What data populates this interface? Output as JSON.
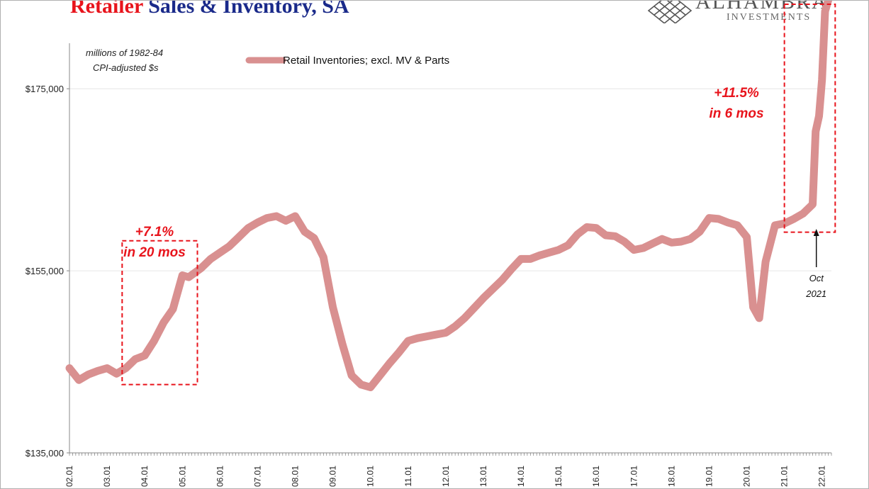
{
  "header": {
    "title_part1": "Retailer",
    "title_part2": " Sales & Inventory, SA"
  },
  "logo": {
    "name": "ALHAMBRA",
    "sub": "INVESTMENTS",
    "icon": "diamond-lattice-icon"
  },
  "colors": {
    "series": "#d99090",
    "annotation": "#e8141c",
    "title_red": "#e8141c",
    "title_blue": "#1a2a8a"
  },
  "chart_data": {
    "type": "line",
    "unit_line1": "millions of 1982-84",
    "unit_line2": "CPI-adjusted $s",
    "ylim": [
      135000,
      180000
    ],
    "yticks": [
      135000,
      155000,
      175000
    ],
    "ytick_labels": [
      "$135,000",
      "$155,000",
      "$175,000"
    ],
    "xlim": [
      2002.0,
      2022.25
    ],
    "xticks": [
      2002,
      2003,
      2004,
      2005,
      2006,
      2007,
      2008,
      2009,
      2010,
      2011,
      2012,
      2013,
      2014,
      2015,
      2016,
      2017,
      2018,
      2019,
      2020,
      2021,
      2022
    ],
    "xtick_labels": [
      "02.01",
      "03.01",
      "04.01",
      "05.01",
      "06.01",
      "07.01",
      "08.01",
      "09.01",
      "10.01",
      "11.01",
      "12.01",
      "13.01",
      "14.01",
      "15.01",
      "16.01",
      "17.01",
      "18.01",
      "19.01",
      "20.01",
      "21.01",
      "22.01"
    ],
    "legend": "top-left",
    "grid": "horizontal",
    "series": [
      {
        "name": "Retail Inventories; excl. MV & Parts",
        "x": [
          2002.0,
          2002.25,
          2002.5,
          2002.75,
          2003.0,
          2003.25,
          2003.5,
          2003.75,
          2004.0,
          2004.25,
          2004.5,
          2004.75,
          2005.0,
          2005.17,
          2005.5,
          2005.75,
          2006.0,
          2006.25,
          2006.5,
          2006.75,
          2007.0,
          2007.25,
          2007.5,
          2007.75,
          2008.0,
          2008.25,
          2008.5,
          2008.75,
          2009.0,
          2009.25,
          2009.5,
          2009.75,
          2010.0,
          2010.25,
          2010.5,
          2010.75,
          2011.0,
          2011.25,
          2011.5,
          2011.75,
          2012.0,
          2012.25,
          2012.5,
          2012.75,
          2013.0,
          2013.25,
          2013.5,
          2013.75,
          2014.0,
          2014.25,
          2014.5,
          2014.75,
          2015.0,
          2015.25,
          2015.5,
          2015.75,
          2016.0,
          2016.25,
          2016.5,
          2016.75,
          2017.0,
          2017.25,
          2017.5,
          2017.75,
          2018.0,
          2018.25,
          2018.5,
          2018.75,
          2019.0,
          2019.25,
          2019.5,
          2019.75,
          2020.0,
          2020.17,
          2020.33,
          2020.5,
          2020.75,
          2021.0,
          2021.25,
          2021.5,
          2021.75,
          2021.83,
          2021.92,
          2022.0,
          2022.08,
          2022.17
        ],
        "values": [
          144300,
          143000,
          143600,
          144000,
          144300,
          143700,
          144300,
          145300,
          145700,
          147300,
          149300,
          150800,
          154500,
          154300,
          155300,
          156300,
          157000,
          157700,
          158700,
          159700,
          160300,
          160800,
          161000,
          160500,
          161000,
          159300,
          158600,
          156500,
          151000,
          147000,
          143500,
          142500,
          142200,
          143500,
          144800,
          146000,
          147300,
          147600,
          147800,
          148000,
          148200,
          148900,
          149800,
          150900,
          152000,
          153000,
          154000,
          155200,
          156300,
          156300,
          156700,
          157000,
          157300,
          157800,
          159000,
          159800,
          159700,
          158900,
          158800,
          158200,
          157300,
          157500,
          158000,
          158500,
          158100,
          158200,
          158500,
          159300,
          160800,
          160700,
          160300,
          160000,
          158700,
          151000,
          149800,
          156000,
          160000,
          160200,
          160700,
          161300,
          162300,
          170300,
          172000,
          176000,
          183500,
          184800
        ]
      }
    ],
    "annotations": [
      {
        "text_line1": "+7.1%",
        "text_line2": "in 20 mos",
        "box_x": [
          2003.4,
          2005.4
        ],
        "box_y": [
          142500,
          158300
        ]
      },
      {
        "text_line1": "+11.5%",
        "text_line2": "in 6 mos",
        "box_x": [
          2021.0,
          2022.35
        ],
        "box_y": [
          160800,
          183500
        ]
      },
      {
        "text_line1": "Oct",
        "text_line2": "2021",
        "arrow_x": 2021.83
      }
    ]
  }
}
